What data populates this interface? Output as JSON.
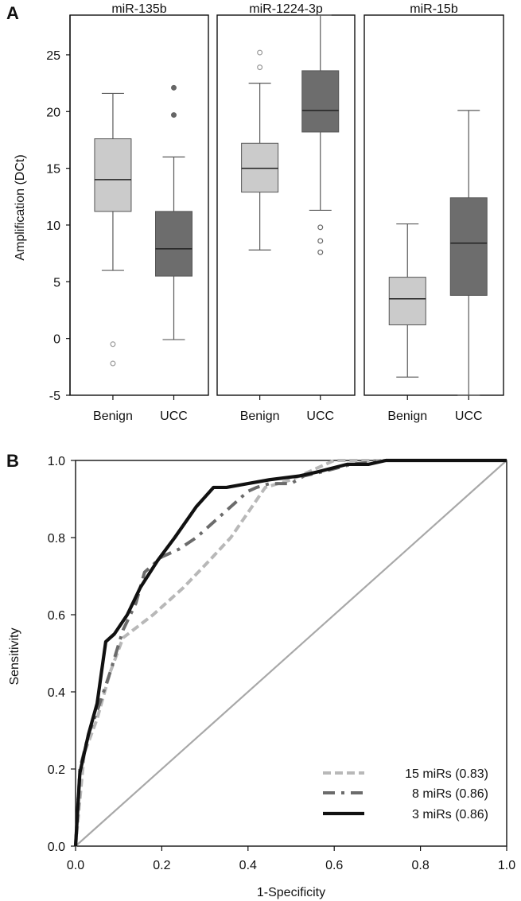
{
  "panel_labels": {
    "a": "A",
    "b": "B"
  },
  "colors": {
    "benign": "#cbcbcb",
    "ucc": "#6d6d6d",
    "line_15": "#b8b8b8",
    "line_8": "#6b6b6b",
    "line_3": "#111111",
    "diagonal": "#a8a8a8",
    "axis": "#111111",
    "frame": "#111111",
    "whisker": "#5a5a5a",
    "outlier_benign": "#9b9b9b",
    "outlier_ucc": "#666666"
  },
  "chart_data": [
    {
      "type": "box",
      "ylabel": "Amplification (DCt)",
      "ylim": [
        -5,
        28.5
      ],
      "yticks": [
        -5,
        0,
        5,
        10,
        15,
        20,
        25
      ],
      "categories": [
        "Benign",
        "UCC"
      ],
      "panels": [
        {
          "title": "miR-135b",
          "groups": [
            {
              "name": "Benign",
              "whisker_low": 6.0,
              "q1": 11.2,
              "median": 14.0,
              "q3": 17.6,
              "whisker_high": 21.6,
              "outliers": [
                -0.5,
                -2.2
              ]
            },
            {
              "name": "UCC",
              "whisker_low": -0.1,
              "q1": 5.5,
              "median": 7.9,
              "q3": 11.2,
              "whisker_high": 16.0,
              "outliers": [
                19.7,
                22.1
              ]
            }
          ]
        },
        {
          "title": "miR-1224-3p",
          "groups": [
            {
              "name": "Benign",
              "whisker_low": 7.8,
              "q1": 12.9,
              "median": 15.0,
              "q3": 17.2,
              "whisker_high": 22.5,
              "outliers": [
                23.9,
                25.2
              ]
            },
            {
              "name": "UCC",
              "whisker_low": 11.3,
              "q1": 18.2,
              "median": 20.1,
              "q3": 23.6,
              "whisker_high": 28.5,
              "outliers": [
                9.8,
                8.6,
                7.6
              ]
            }
          ]
        },
        {
          "title": "miR-15b",
          "groups": [
            {
              "name": "Benign",
              "whisker_low": -3.4,
              "q1": 1.2,
              "median": 3.5,
              "q3": 5.4,
              "whisker_high": 10.1,
              "outliers": []
            },
            {
              "name": "UCC",
              "whisker_low": -5.0,
              "q1": 3.8,
              "median": 8.4,
              "q3": 12.4,
              "whisker_high": 20.1,
              "outliers": []
            }
          ]
        }
      ]
    },
    {
      "type": "line",
      "xlabel": "1-Specificity",
      "ylabel": "Sensitivity",
      "xlim": [
        0.0,
        1.0
      ],
      "ylim": [
        0.0,
        1.0
      ],
      "xticks": [
        0.0,
        0.2,
        0.4,
        0.6,
        0.8,
        1.0
      ],
      "yticks": [
        0.0,
        0.2,
        0.4,
        0.6,
        0.8,
        1.0
      ],
      "legend_position": "bottom-right",
      "diagonal": {
        "x": [
          0.0,
          1.0
        ],
        "y": [
          0.0,
          1.0
        ]
      },
      "series": [
        {
          "name": "15 miRs (0.83)",
          "x": [
            0.0,
            0.02,
            0.05,
            0.08,
            0.11,
            0.18,
            0.25,
            0.31,
            0.36,
            0.44,
            0.5,
            0.52,
            0.58,
            0.6,
            1.0
          ],
          "y": [
            0.0,
            0.24,
            0.33,
            0.45,
            0.54,
            0.6,
            0.67,
            0.74,
            0.8,
            0.93,
            0.95,
            0.96,
            0.99,
            1.0,
            1.0
          ]
        },
        {
          "name": "8 miRs (0.86)",
          "x": [
            0.0,
            0.01,
            0.03,
            0.05,
            0.08,
            0.11,
            0.14,
            0.16,
            0.2,
            0.24,
            0.28,
            0.33,
            0.37,
            0.4,
            0.42,
            0.45,
            0.5,
            0.53,
            0.57,
            0.64,
            0.72,
            0.76,
            1.0
          ],
          "y": [
            0.0,
            0.2,
            0.29,
            0.35,
            0.45,
            0.56,
            0.63,
            0.71,
            0.75,
            0.77,
            0.8,
            0.85,
            0.89,
            0.92,
            0.93,
            0.94,
            0.94,
            0.96,
            0.97,
            0.99,
            1.0,
            1.0,
            1.0
          ]
        },
        {
          "name": "3 miRs (0.86)",
          "x": [
            0.0,
            0.01,
            0.03,
            0.05,
            0.07,
            0.09,
            0.12,
            0.15,
            0.19,
            0.23,
            0.28,
            0.32,
            0.35,
            0.4,
            0.45,
            0.52,
            0.56,
            0.63,
            0.68,
            0.72,
            0.76,
            1.0
          ],
          "y": [
            0.0,
            0.19,
            0.29,
            0.37,
            0.53,
            0.55,
            0.6,
            0.67,
            0.74,
            0.8,
            0.88,
            0.93,
            0.93,
            0.94,
            0.95,
            0.96,
            0.97,
            0.99,
            0.99,
            1.0,
            1.0,
            1.0
          ]
        }
      ]
    }
  ]
}
